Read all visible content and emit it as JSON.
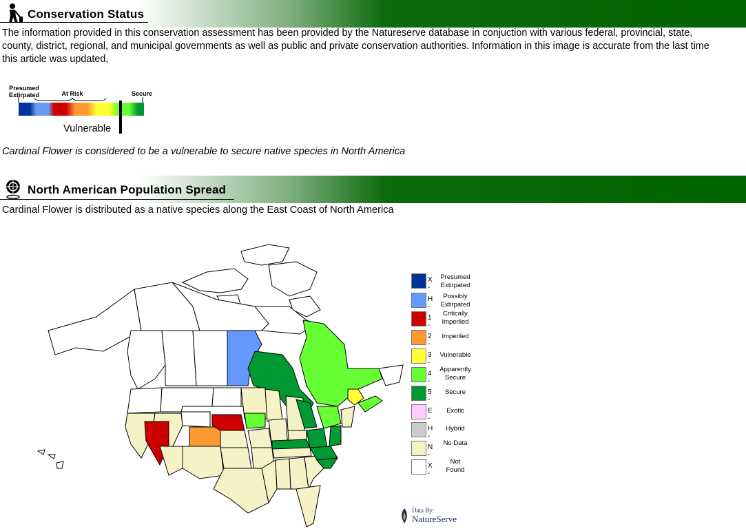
{
  "conservation": {
    "title": "Conservation Status",
    "intro": "The information provided in this conservation assessment has been provided by the Natureserve  database in conjuction with various federal, provincial, state, county, district, regional, and  municipal governments as well as public and private conservation authorities. Information in this image is accurate from the last time this article was updated,",
    "scale": {
      "label_left": "Presumed Extirpated",
      "label_mid": "At Risk",
      "label_right": "Secure",
      "marker_label": "Vulnerable",
      "colors": [
        "#003399",
        "#6a9af0",
        "#cc0000",
        "#ff9933",
        "#ffff33",
        "#66ff33",
        "#009933"
      ]
    },
    "caption": "Cardinal Flower is considered to be a vulnerable to secure native species in North America"
  },
  "spread": {
    "title": "North American Population Spread",
    "text": "Cardinal Flower is distributed as a native species along the East Coast of North America"
  },
  "legend": [
    {
      "code": "X -",
      "label": "Presumed Extirpated",
      "color": "#003399"
    },
    {
      "code": "H -",
      "label": "Possibly Extirpated",
      "color": "#6699ff"
    },
    {
      "code": "1 -",
      "label": "Critically Imperiled",
      "color": "#cc0000"
    },
    {
      "code": "2 -",
      "label": "Imperiled",
      "color": "#ff9933"
    },
    {
      "code": "3 -",
      "label": "Vulnerable",
      "color": "#ffff33"
    },
    {
      "code": "4 -",
      "label": "Apparently Secure",
      "color": "#66ff33"
    },
    {
      "code": "5 -",
      "label": "Secure",
      "color": "#009933"
    },
    {
      "code": "E -",
      "label": "Exotic",
      "color": "#ffccff"
    },
    {
      "code": "H -",
      "label": "Hybrid",
      "color": "#cccccc"
    },
    {
      "code": "N -",
      "label": "No Data",
      "color": "#f5f2c8"
    },
    {
      "code": "X -",
      "label": "Not Found",
      "color": "#ffffff"
    }
  ],
  "credit": {
    "by": "Data By:",
    "org": "NatureServe"
  }
}
